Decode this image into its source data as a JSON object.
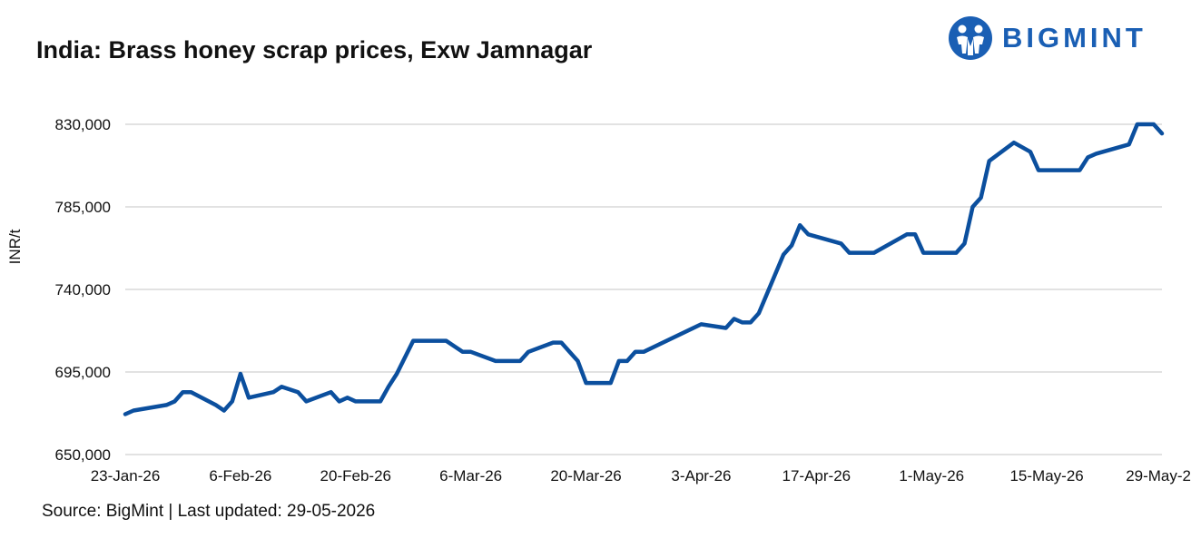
{
  "header": {
    "title": "India: Brass honey scrap prices, Exw Jamnagar",
    "logo_text": "BIGMINT",
    "logo_icon": "bigmint-logo-icon"
  },
  "footer": {
    "source": "Source: BigMint | Last updated: 29-05-2026"
  },
  "colors": {
    "line": "#0b4f9e",
    "grid": "#d0d0d0",
    "logo": "#1a5fb4"
  },
  "chart_data": {
    "type": "line",
    "title": "India: Brass honey scrap prices, Exw Jamnagar",
    "xlabel": "",
    "ylabel": "INR/t",
    "ylim": [
      650000,
      830000
    ],
    "yticks": [
      650000,
      695000,
      740000,
      785000,
      830000
    ],
    "ytick_labels": [
      "650,000",
      "695,000",
      "740,000",
      "785,000",
      "830,000"
    ],
    "xlim": [
      "2026-01-23",
      "2026-05-29"
    ],
    "xticks": [
      "2026-01-23",
      "2026-02-06",
      "2026-02-20",
      "2026-03-06",
      "2026-03-20",
      "2026-04-03",
      "2026-04-17",
      "2026-05-01",
      "2026-05-15",
      "2026-05-29"
    ],
    "xtick_labels": [
      "23-Jan-26",
      "6-Feb-26",
      "20-Feb-26",
      "6-Mar-26",
      "20-Mar-26",
      "3-Apr-26",
      "17-Apr-26",
      "1-May-26",
      "15-May-26",
      "29-May-2"
    ],
    "grid": true,
    "legend": "none",
    "series": [
      {
        "x": [
          "2026-01-23",
          "2026-01-24",
          "2026-01-28",
          "2026-01-29",
          "2026-01-30",
          "2026-01-31",
          "2026-02-03",
          "2026-02-04",
          "2026-02-05",
          "2026-02-06",
          "2026-02-07",
          "2026-02-10",
          "2026-02-11",
          "2026-02-13",
          "2026-02-14",
          "2026-02-17",
          "2026-02-18",
          "2026-02-19",
          "2026-02-20",
          "2026-02-23",
          "2026-02-24",
          "2026-02-25",
          "2026-02-27",
          "2026-03-02",
          "2026-03-03",
          "2026-03-05",
          "2026-03-06",
          "2026-03-09",
          "2026-03-11",
          "2026-03-12",
          "2026-03-13",
          "2026-03-16",
          "2026-03-17",
          "2026-03-18",
          "2026-03-19",
          "2026-03-20",
          "2026-03-23",
          "2026-03-24",
          "2026-03-25",
          "2026-03-26",
          "2026-03-27",
          "2026-04-03",
          "2026-04-06",
          "2026-04-07",
          "2026-04-08",
          "2026-04-09",
          "2026-04-10",
          "2026-04-13",
          "2026-04-14",
          "2026-04-15",
          "2026-04-16",
          "2026-04-20",
          "2026-04-21",
          "2026-04-24",
          "2026-04-28",
          "2026-04-29",
          "2026-04-30",
          "2026-05-01",
          "2026-05-04",
          "2026-05-05",
          "2026-05-06",
          "2026-05-07",
          "2026-05-08",
          "2026-05-11",
          "2026-05-13",
          "2026-05-14",
          "2026-05-15",
          "2026-05-19",
          "2026-05-20",
          "2026-05-21",
          "2026-05-25",
          "2026-05-26",
          "2026-05-28",
          "2026-05-29"
        ],
        "values": [
          672000,
          674000,
          677000,
          679000,
          684000,
          684000,
          677000,
          674000,
          679000,
          694000,
          681000,
          684000,
          687000,
          684000,
          679000,
          684000,
          679000,
          681000,
          679000,
          679000,
          687000,
          694000,
          712000,
          712000,
          712000,
          706000,
          706000,
          701000,
          701000,
          701000,
          706000,
          711000,
          711000,
          706000,
          701000,
          689000,
          689000,
          701000,
          701000,
          706000,
          706000,
          721000,
          719000,
          724000,
          722000,
          722000,
          727000,
          759000,
          764000,
          775000,
          770000,
          765000,
          760000,
          760000,
          770000,
          770000,
          760000,
          760000,
          760000,
          765000,
          785000,
          790000,
          810000,
          820000,
          815000,
          805000,
          805000,
          805000,
          812000,
          814000,
          819000,
          830000,
          830000,
          825000
        ]
      }
    ]
  }
}
